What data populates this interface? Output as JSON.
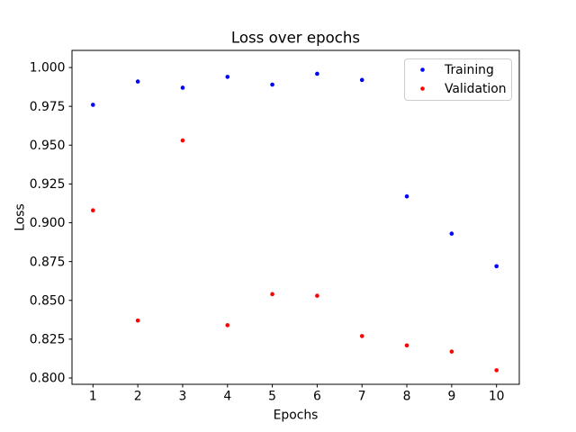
{
  "chart_data": {
    "type": "scatter",
    "title": "Loss over epochs",
    "xlabel": "Epochs",
    "ylabel": "Loss",
    "x": [
      1,
      2,
      3,
      4,
      5,
      6,
      7,
      8,
      9,
      10
    ],
    "series": [
      {
        "name": "Training",
        "color": "#0000ff",
        "values": [
          0.976,
          0.991,
          0.987,
          0.994,
          0.989,
          0.996,
          0.992,
          0.917,
          0.893,
          0.872
        ]
      },
      {
        "name": "Validation",
        "color": "#ff0000",
        "values": [
          0.908,
          0.837,
          0.953,
          0.834,
          0.854,
          0.853,
          0.827,
          0.821,
          0.817,
          0.805
        ]
      }
    ],
    "xticks": [
      1,
      2,
      3,
      4,
      5,
      6,
      7,
      8,
      9,
      10
    ],
    "yticks": [
      0.8,
      0.825,
      0.85,
      0.875,
      0.9,
      0.925,
      0.95,
      0.975,
      1.0
    ],
    "ytick_decimals": 3,
    "xlim": [
      0.532,
      10.508
    ],
    "ylim": [
      0.79594,
      1.01104
    ],
    "grid": false,
    "legend_position": "upper right",
    "marker": "point",
    "axis_color": "#000000",
    "background_color": "#ffffff",
    "legend_border_color": "#cccccc"
  }
}
